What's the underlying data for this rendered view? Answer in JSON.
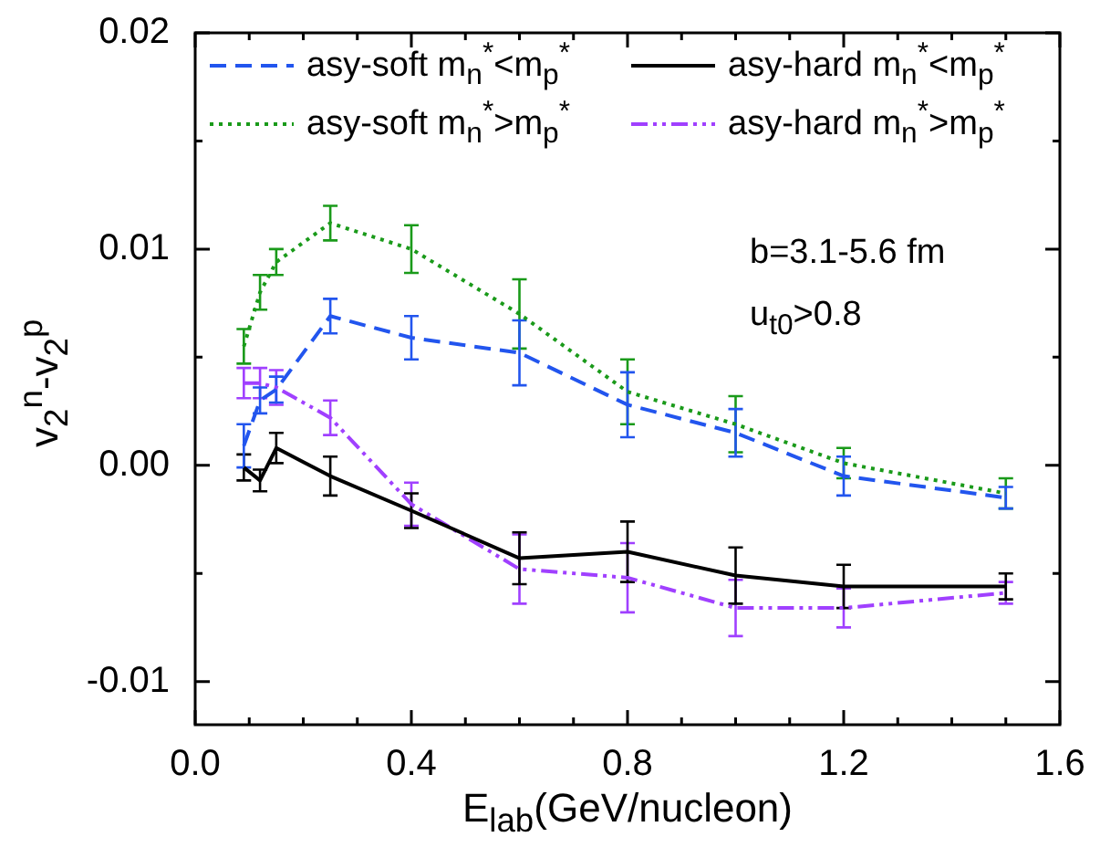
{
  "chart_data": {
    "type": "line",
    "xlabel": "E$_{lab}$(GeV/nucleon)",
    "ylabel": "v$_{2}$$^{n}$-v$_{2}$$^{p}$",
    "x": [
      0.09,
      0.12,
      0.15,
      0.25,
      0.4,
      0.6,
      0.8,
      1.0,
      1.2,
      1.5
    ],
    "series": [
      {
        "name": "asy-soft m$_{n}$$^{*}$<m$_{p}$$^{*}$",
        "color": "#2255ee",
        "line_style": "dashed",
        "values": [
          0.0009,
          0.003,
          0.0035,
          0.0069,
          0.0059,
          0.0052,
          0.0028,
          0.0015,
          -0.0005,
          -0.0015
        ],
        "errors": [
          0.001,
          0.0006,
          0.0006,
          0.0008,
          0.001,
          0.0015,
          0.0015,
          0.0011,
          0.0009,
          0.0005
        ]
      },
      {
        "name": "asy-hard m$_{n}$$^{*}$<m$_{p}$$^{*}$",
        "color": "#000000",
        "line_style": "solid",
        "values": [
          -0.0001,
          -0.0007,
          0.0008,
          -0.0005,
          -0.0021,
          -0.0043,
          -0.004,
          -0.0051,
          -0.0056,
          -0.0056
        ],
        "errors": [
          0.0006,
          0.0005,
          0.0007,
          0.0009,
          0.0008,
          0.0012,
          0.0014,
          0.0013,
          0.001,
          0.0006
        ]
      },
      {
        "name": "asy-soft m$_{n}$$^{*}$>m$_{p}$$^{*}$",
        "color": "#1a9a1a",
        "line_style": "dotted",
        "values": [
          0.0055,
          0.008,
          0.0094,
          0.0112,
          0.01,
          0.007,
          0.0034,
          0.0019,
          0.0001,
          -0.0013
        ],
        "errors": [
          0.0008,
          0.0008,
          0.0006,
          0.0008,
          0.0011,
          0.0016,
          0.0015,
          0.0013,
          0.0007,
          0.0007
        ]
      },
      {
        "name": "asy-hard m$_{n}$$^{*}$>m$_{p}$$^{*}$",
        "color": "#a040ff",
        "line_style": "dashdot",
        "values": [
          0.0038,
          0.0038,
          0.0036,
          0.0022,
          -0.0018,
          -0.0048,
          -0.0052,
          -0.0066,
          -0.0066,
          -0.0059
        ],
        "errors": [
          0.0007,
          0.0007,
          0.0008,
          0.0008,
          0.001,
          0.0016,
          0.0016,
          0.0013,
          0.0009,
          0.0005
        ]
      }
    ],
    "xlim": [
      0,
      1.6
    ],
    "xticks": [
      {
        "value": 0,
        "label": "0.0"
      },
      {
        "value": 0.1,
        "label": null
      },
      {
        "value": 0.2,
        "label": null
      },
      {
        "value": 0.3,
        "label": null
      },
      0.4,
      {
        "value": 0.5,
        "label": null
      },
      {
        "value": 0.6,
        "label": null
      },
      {
        "value": 0.7,
        "label": null
      },
      0.8,
      {
        "value": 0.9,
        "label": null
      },
      {
        "value": 1.0,
        "label": null
      },
      {
        "value": 1.1,
        "label": null
      },
      1.2,
      {
        "value": 1.3,
        "label": null
      },
      {
        "value": 1.4,
        "label": null
      },
      {
        "value": 1.5,
        "label": null
      },
      1.6
    ],
    "ylim": [
      -0.012,
      0.02
    ],
    "yticks": [
      -0.01,
      {
        "value": -0.005,
        "label": null
      },
      {
        "value": 0,
        "label": "0.00"
      },
      {
        "value": 0.005,
        "label": null
      },
      0.01,
      {
        "value": 0.015,
        "label": null
      },
      0.02
    ],
    "grid": false,
    "legend": "top",
    "marker": "none",
    "annotations": [
      "b=3.1-5.6 fm",
      "u$_{t0}$>0.8"
    ]
  }
}
